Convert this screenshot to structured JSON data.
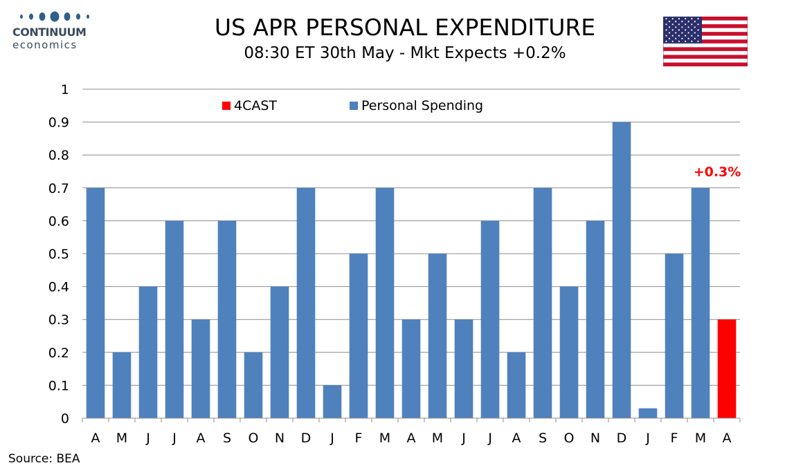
{
  "logo": {
    "name": "CONTINUUM",
    "sub": "economics"
  },
  "title": "US APR PERSONAL EXPENDITURE",
  "subtitle": "08:30 ET 30th May - Mkt Expects +0.2%",
  "source": "Source: BEA",
  "chart_data": {
    "type": "bar",
    "categories": [
      "A",
      "M",
      "J",
      "J",
      "A",
      "S",
      "O",
      "N",
      "D",
      "J",
      "F",
      "M",
      "A",
      "M",
      "J",
      "J",
      "A",
      "S",
      "O",
      "N",
      "D",
      "J",
      "F",
      "M",
      "A"
    ],
    "series": [
      {
        "name": "Personal Spending",
        "color": "#4f81bd",
        "values": [
          0.7,
          0.2,
          0.4,
          0.6,
          0.3,
          0.6,
          0.2,
          0.4,
          0.7,
          0.1,
          0.5,
          0.7,
          0.3,
          0.5,
          0.3,
          0.6,
          0.2,
          0.7,
          0.4,
          0.6,
          0.9,
          0.03,
          0.5,
          0.7,
          null
        ]
      },
      {
        "name": "4CAST",
        "color": "#ff0000",
        "values": [
          null,
          null,
          null,
          null,
          null,
          null,
          null,
          null,
          null,
          null,
          null,
          null,
          null,
          null,
          null,
          null,
          null,
          null,
          null,
          null,
          null,
          null,
          null,
          null,
          0.3
        ]
      }
    ],
    "annotation": {
      "text": "+0.3%",
      "category_index": 24,
      "color": "#ff0000"
    },
    "ylim": [
      0,
      1
    ],
    "yticks": [
      "0",
      "0.1",
      "0.2",
      "0.3",
      "0.4",
      "0.5",
      "0.6",
      "0.7",
      "0.8",
      "0.9",
      "1"
    ],
    "grid": true,
    "legend_position": "top"
  }
}
